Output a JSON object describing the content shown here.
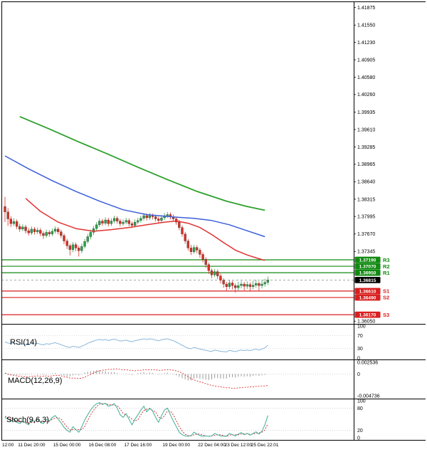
{
  "indicators": {
    "rsi": {
      "label": "RSI(14)"
    },
    "macd": {
      "label": "MACD(12,26,9)"
    },
    "stoch": {
      "label": "Stoch(9,6,3)"
    }
  },
  "colors": {
    "up": "#2fa34a",
    "down": "#d93025",
    "ma_green": "#2ca02c",
    "ma_blue": "#3b5fd9",
    "ma_red": "#e03131",
    "res": "#118a11",
    "sup": "#d91f1f",
    "price_badge": "#000000",
    "rsi": "#8ab6d9",
    "stoch_k": "#3fae96",
    "stoch_d": "#cc2222",
    "macd_sig": "#dd3333",
    "macd_hist": "#9a9a9a",
    "grid": "#b9b9c9",
    "axis_text": "#000000"
  },
  "chart_data": {
    "type": "candlestick",
    "x_ticks": [
      {
        "label": "12:00",
        "i": 1
      },
      {
        "label": "11 Dec 20:00",
        "i": 9
      },
      {
        "label": "15 Dec 00:00",
        "i": 21
      },
      {
        "label": "16 Dec 08:00",
        "i": 33
      },
      {
        "label": "17 Dec 16:00",
        "i": 45
      },
      {
        "label": "19 Dec 00:00",
        "i": 58
      },
      {
        "label": "22 Dec 04:00",
        "i": 70
      },
      {
        "label": "23 Dec 12:00",
        "i": 79
      },
      {
        "label": "25 Dec 22:01",
        "i": 88
      }
    ],
    "main": {
      "y_range": [
        1.36,
        1.4195
      ],
      "y_ticks": [
        "1.41875",
        "1.41550",
        "1.41230",
        "1.40905",
        "1.40580",
        "1.40260",
        "1.39935",
        "1.39610",
        "1.39285",
        "1.38965",
        "1.38640",
        "1.38315",
        "1.37995",
        "1.37670",
        "1.37345",
        "1.36050"
      ],
      "current_price": "1.36815",
      "levels": [
        {
          "name": "R3",
          "value": 1.3719,
          "label": "1.37190",
          "type": "res"
        },
        {
          "name": "R2",
          "value": 1.3707,
          "label": "1.37070",
          "type": "res"
        },
        {
          "name": "R1",
          "value": 1.3695,
          "label": "1.36950",
          "type": "res"
        },
        {
          "name": "",
          "value": 1.36815,
          "label": "1.36815",
          "type": "price"
        },
        {
          "name": "S1",
          "value": 1.3661,
          "label": "1.36610",
          "type": "sup"
        },
        {
          "name": "S2",
          "value": 1.3649,
          "label": "1.36490",
          "type": "sup"
        },
        {
          "name": "S3",
          "value": 1.3617,
          "label": "1.36170",
          "type": "sup"
        }
      ],
      "ma_green": [
        [
          5,
          1.3985
        ],
        [
          15,
          1.3962
        ],
        [
          25,
          1.3938
        ],
        [
          35,
          1.3915
        ],
        [
          45,
          1.3891
        ],
        [
          55,
          1.3868
        ],
        [
          65,
          1.3846
        ],
        [
          75,
          1.3828
        ],
        [
          82,
          1.3818
        ],
        [
          88,
          1.3811
        ]
      ],
      "ma_blue": [
        [
          0,
          1.3912
        ],
        [
          8,
          1.3888
        ],
        [
          16,
          1.3866
        ],
        [
          24,
          1.3846
        ],
        [
          32,
          1.3828
        ],
        [
          40,
          1.3812
        ],
        [
          48,
          1.3803
        ],
        [
          56,
          1.3799
        ],
        [
          64,
          1.3796
        ],
        [
          70,
          1.3792
        ],
        [
          76,
          1.3784
        ],
        [
          82,
          1.3773
        ],
        [
          88,
          1.3762
        ]
      ],
      "ma_red": [
        [
          7,
          1.3833
        ],
        [
          12,
          1.3809
        ],
        [
          18,
          1.3789
        ],
        [
          24,
          1.3777
        ],
        [
          30,
          1.3772
        ],
        [
          36,
          1.3775
        ],
        [
          42,
          1.3779
        ],
        [
          48,
          1.3784
        ],
        [
          54,
          1.3789
        ],
        [
          58,
          1.3791
        ],
        [
          62,
          1.3787
        ],
        [
          66,
          1.3779
        ],
        [
          70,
          1.3766
        ],
        [
          74,
          1.3751
        ],
        [
          78,
          1.3737
        ],
        [
          82,
          1.3728
        ],
        [
          86,
          1.3721
        ],
        [
          88,
          1.3718
        ]
      ],
      "candles": [
        [
          1.3818,
          1.3836,
          1.3789,
          1.3808
        ],
        [
          1.3808,
          1.3815,
          1.3782,
          1.3795
        ],
        [
          1.3795,
          1.38,
          1.378,
          1.3786
        ],
        [
          1.3786,
          1.3796,
          1.3782,
          1.379
        ],
        [
          1.379,
          1.3794,
          1.3776,
          1.3781
        ],
        [
          1.3781,
          1.3786,
          1.3771,
          1.3776
        ],
        [
          1.3776,
          1.3785,
          1.3772,
          1.378
        ],
        [
          1.378,
          1.3784,
          1.3768,
          1.3773
        ],
        [
          1.3773,
          1.3778,
          1.3764,
          1.3769
        ],
        [
          1.3769,
          1.3781,
          1.3765,
          1.3776
        ],
        [
          1.3776,
          1.378,
          1.3766,
          1.3771
        ],
        [
          1.3771,
          1.3779,
          1.3767,
          1.3774
        ],
        [
          1.3774,
          1.3778,
          1.3763,
          1.3768
        ],
        [
          1.3768,
          1.3772,
          1.3758,
          1.3764
        ],
        [
          1.3764,
          1.3775,
          1.376,
          1.377
        ],
        [
          1.377,
          1.3774,
          1.3762,
          1.3767
        ],
        [
          1.3767,
          1.3777,
          1.3763,
          1.3772
        ],
        [
          1.3772,
          1.3781,
          1.3768,
          1.3776
        ],
        [
          1.3776,
          1.378,
          1.3766,
          1.3771
        ],
        [
          1.3771,
          1.3775,
          1.3759,
          1.3764
        ],
        [
          1.3764,
          1.3768,
          1.3748,
          1.3754
        ],
        [
          1.3754,
          1.3758,
          1.3739,
          1.3745
        ],
        [
          1.3745,
          1.3749,
          1.3727,
          1.3738
        ],
        [
          1.3738,
          1.3752,
          1.3733,
          1.3747
        ],
        [
          1.3747,
          1.3751,
          1.3735,
          1.3741
        ],
        [
          1.3741,
          1.3745,
          1.3725,
          1.3736
        ],
        [
          1.3736,
          1.3749,
          1.3731,
          1.3744
        ],
        [
          1.3744,
          1.3758,
          1.374,
          1.3753
        ],
        [
          1.3753,
          1.3767,
          1.3749,
          1.3762
        ],
        [
          1.3762,
          1.3775,
          1.3757,
          1.377
        ],
        [
          1.377,
          1.3782,
          1.3765,
          1.3777
        ],
        [
          1.3777,
          1.3789,
          1.3772,
          1.3784
        ],
        [
          1.3784,
          1.3796,
          1.378,
          1.3791
        ],
        [
          1.3791,
          1.3795,
          1.3782,
          1.3787
        ],
        [
          1.3787,
          1.3798,
          1.3783,
          1.3793
        ],
        [
          1.3793,
          1.3797,
          1.3781,
          1.3786
        ],
        [
          1.3786,
          1.3796,
          1.3782,
          1.3791
        ],
        [
          1.3791,
          1.3801,
          1.3787,
          1.3796
        ],
        [
          1.3796,
          1.38,
          1.3786,
          1.3791
        ],
        [
          1.3791,
          1.3795,
          1.3781,
          1.3786
        ],
        [
          1.3786,
          1.3794,
          1.3782,
          1.3789
        ],
        [
          1.3789,
          1.3797,
          1.3785,
          1.3792
        ],
        [
          1.3792,
          1.3796,
          1.3781,
          1.3786
        ],
        [
          1.3786,
          1.379,
          1.3778,
          1.3783
        ],
        [
          1.3783,
          1.3794,
          1.3779,
          1.3789
        ],
        [
          1.3789,
          1.3797,
          1.3785,
          1.3792
        ],
        [
          1.3792,
          1.3801,
          1.3788,
          1.3796
        ],
        [
          1.3796,
          1.3806,
          1.3792,
          1.3801
        ],
        [
          1.3801,
          1.3805,
          1.3792,
          1.3797
        ],
        [
          1.3797,
          1.3806,
          1.3793,
          1.3801
        ],
        [
          1.3801,
          1.3805,
          1.3794,
          1.3799
        ],
        [
          1.3799,
          1.3803,
          1.379,
          1.3795
        ],
        [
          1.3795,
          1.3799,
          1.3787,
          1.3792
        ],
        [
          1.3792,
          1.3802,
          1.3788,
          1.3797
        ],
        [
          1.3797,
          1.3806,
          1.3793,
          1.3801
        ],
        [
          1.3801,
          1.3808,
          1.3797,
          1.3803
        ],
        [
          1.3803,
          1.3807,
          1.3794,
          1.3799
        ],
        [
          1.3799,
          1.3803,
          1.379,
          1.3795
        ],
        [
          1.3795,
          1.3799,
          1.3784,
          1.3789
        ],
        [
          1.3789,
          1.3793,
          1.3774,
          1.3779
        ],
        [
          1.3779,
          1.3783,
          1.3762,
          1.3767
        ],
        [
          1.3767,
          1.3771,
          1.3749,
          1.3754
        ],
        [
          1.3754,
          1.3758,
          1.3736,
          1.3741
        ],
        [
          1.3741,
          1.3747,
          1.3728,
          1.3734
        ],
        [
          1.3734,
          1.3747,
          1.373,
          1.3742
        ],
        [
          1.3742,
          1.3746,
          1.3731,
          1.3737
        ],
        [
          1.3737,
          1.3741,
          1.3723,
          1.3729
        ],
        [
          1.3729,
          1.3733,
          1.3714,
          1.372
        ],
        [
          1.372,
          1.3724,
          1.3704,
          1.371
        ],
        [
          1.371,
          1.3714,
          1.3693,
          1.3699
        ],
        [
          1.3699,
          1.3703,
          1.3685,
          1.3691
        ],
        [
          1.3691,
          1.3702,
          1.3687,
          1.3697
        ],
        [
          1.3697,
          1.3701,
          1.3683,
          1.3689
        ],
        [
          1.3689,
          1.3693,
          1.3675,
          1.3681
        ],
        [
          1.3681,
          1.3685,
          1.3667,
          1.3674
        ],
        [
          1.3674,
          1.3678,
          1.3661,
          1.3669
        ],
        [
          1.3669,
          1.3681,
          1.3665,
          1.3676
        ],
        [
          1.3676,
          1.368,
          1.3664,
          1.3671
        ],
        [
          1.3671,
          1.3675,
          1.3658,
          1.3667
        ],
        [
          1.3667,
          1.3678,
          1.3662,
          1.3671
        ],
        [
          1.3671,
          1.368,
          1.3666,
          1.3674
        ],
        [
          1.3674,
          1.3678,
          1.3662,
          1.367
        ],
        [
          1.367,
          1.3679,
          1.3665,
          1.3673
        ],
        [
          1.3673,
          1.3677,
          1.366,
          1.3669
        ],
        [
          1.3669,
          1.368,
          1.3664,
          1.3672
        ],
        [
          1.3672,
          1.3682,
          1.3667,
          1.3675
        ],
        [
          1.3675,
          1.3679,
          1.3662,
          1.3671
        ],
        [
          1.3671,
          1.3682,
          1.3666,
          1.3674
        ],
        [
          1.3674,
          1.3684,
          1.3669,
          1.3677
        ],
        [
          1.3677,
          1.3688,
          1.3672,
          1.36815
        ]
      ]
    },
    "rsi": {
      "range": [
        0,
        100
      ],
      "grid": [
        70,
        30
      ],
      "scale_labels": [
        "100",
        "70",
        "30",
        "0"
      ],
      "values": [
        50,
        47,
        45,
        47,
        44,
        42,
        45,
        42,
        41,
        46,
        44,
        46,
        43,
        41,
        45,
        43,
        46,
        48,
        45,
        42,
        38,
        35,
        33,
        37,
        35,
        33,
        37,
        41,
        46,
        50,
        53,
        56,
        58,
        56,
        58,
        55,
        57,
        59,
        56,
        53,
        54,
        56,
        53,
        51,
        54,
        56,
        58,
        60,
        58,
        60,
        59,
        56,
        54,
        57,
        59,
        60,
        57,
        54,
        50,
        45,
        40,
        35,
        31,
        29,
        33,
        31,
        28,
        26,
        24,
        22,
        21,
        25,
        23,
        21,
        20,
        19,
        24,
        22,
        20,
        23,
        25,
        23,
        25,
        23,
        26,
        28,
        25,
        28,
        32,
        40
      ]
    },
    "macd": {
      "scale_labels": [
        "0.002536",
        "0",
        "-0.004736"
      ],
      "signal": [
        0.0002,
        0,
        -0.0002,
        -0.0003,
        -0.0004,
        -0.0005,
        -0.0005,
        -0.0006,
        -0.0006,
        -0.0005,
        -0.0005,
        -0.0004,
        -0.0005,
        -0.0005,
        -0.0004,
        -0.0005,
        -0.0004,
        -0.0003,
        -0.0003,
        -0.0004,
        -0.0006,
        -0.0007,
        -0.0009,
        -0.0009,
        -0.0009,
        -0.001,
        -0.0009,
        -0.0007,
        -0.0004,
        -0.0001,
        0.0002,
        0.0005,
        0.0007,
        0.0008,
        0.0009,
        0.001,
        0.001,
        0.0011,
        0.0011,
        0.001,
        0.0009,
        0.0009,
        0.0008,
        0.0008,
        0.0007,
        0.0008,
        0.0008,
        0.0009,
        0.0009,
        0.0009,
        0.0009,
        0.0009,
        0.0008,
        0.0008,
        0.0009,
        0.0009,
        0.0009,
        0.0008,
        0.0007,
        0.0005,
        0.0002,
        -0.0002,
        -0.0006,
        -0.001,
        -0.0013,
        -0.0015,
        -0.0017,
        -0.0019,
        -0.0021,
        -0.0023,
        -0.0025,
        -0.0026,
        -0.0027,
        -0.0028,
        -0.0029,
        -0.003,
        -0.003,
        -0.0031,
        -0.0031,
        -0.003,
        -0.003,
        -0.0029,
        -0.0029,
        -0.0028,
        -0.0028,
        -0.0027,
        -0.0027,
        -0.0026,
        -0.0026,
        -0.0025
      ],
      "histogram": [
        0.0001,
        -0.0002,
        -0.0003,
        -0.0002,
        -0.0002,
        -0.0002,
        -0.0001,
        -0.0002,
        -0.0001,
        0.0001,
        0,
        0.0001,
        -0.0001,
        -0.0002,
        0.0001,
        0,
        0.0001,
        0.0002,
        0,
        -0.0002,
        -0.0004,
        -0.0005,
        -0.0005,
        -0.0003,
        -0.0002,
        -0.0003,
        -0.0001,
        0.0003,
        0.0005,
        0.0006,
        0.0007,
        0.0008,
        0.0008,
        0.0006,
        0.0006,
        0.0004,
        0.0004,
        0.0004,
        0.0002,
        0,
        0,
        0.0001,
        -0.0001,
        -0.0002,
        0,
        0.0002,
        0.0003,
        0.0004,
        0.0002,
        0.0003,
        0.0002,
        0,
        -0.0001,
        0.0001,
        0.0002,
        0.0003,
        0.0001,
        -0.0001,
        -0.0003,
        -0.0006,
        -0.0009,
        -0.0012,
        -0.0014,
        -0.0014,
        -0.001,
        -0.0009,
        -0.001,
        -0.0011,
        -0.0012,
        -0.0013,
        -0.0012,
        -0.0009,
        -0.0009,
        -0.001,
        -0.001,
        -0.001,
        -0.0007,
        -0.0007,
        -0.0008,
        -0.0006,
        -0.0005,
        -0.0006,
        -0.0005,
        -0.0006,
        -0.0004,
        -0.0003,
        -0.0004,
        -0.0003,
        -0.0002,
        0
      ]
    },
    "stoch": {
      "range": [
        0,
        100
      ],
      "grid": [
        80,
        20
      ],
      "scale_labels": [
        "100",
        "80",
        "20",
        "0"
      ],
      "k": [
        55,
        50,
        45,
        50,
        42,
        38,
        45,
        40,
        35,
        48,
        44,
        50,
        42,
        38,
        50,
        45,
        55,
        60,
        50,
        40,
        28,
        20,
        15,
        30,
        22,
        15,
        30,
        48,
        62,
        75,
        85,
        92,
        95,
        90,
        93,
        85,
        88,
        92,
        80,
        62,
        55,
        65,
        50,
        35,
        50,
        62,
        75,
        85,
        70,
        80,
        72,
        55,
        42,
        60,
        75,
        80,
        62,
        45,
        30,
        15,
        8,
        5,
        4,
        6,
        15,
        10,
        6,
        4,
        5,
        4,
        5,
        12,
        8,
        5,
        4,
        4,
        12,
        8,
        5,
        10,
        14,
        8,
        12,
        7,
        12,
        16,
        10,
        18,
        35,
        60
      ],
      "d": [
        58,
        54,
        50,
        48,
        46,
        43,
        42,
        42,
        40,
        41,
        42,
        47,
        45,
        43,
        43,
        44,
        50,
        53,
        55,
        50,
        39,
        29,
        21,
        22,
        22,
        22,
        22,
        31,
        47,
        62,
        74,
        84,
        91,
        92,
        93,
        89,
        89,
        88,
        87,
        78,
        66,
        61,
        57,
        50,
        45,
        49,
        62,
        74,
        77,
        78,
        74,
        69,
        56,
        52,
        59,
        72,
        72,
        62,
        46,
        30,
        18,
        9,
        6,
        5,
        8,
        10,
        10,
        7,
        5,
        4,
        5,
        7,
        8,
        8,
        6,
        4,
        7,
        8,
        8,
        8,
        10,
        11,
        11,
        9,
        10,
        12,
        13,
        15,
        21,
        38
      ]
    }
  }
}
